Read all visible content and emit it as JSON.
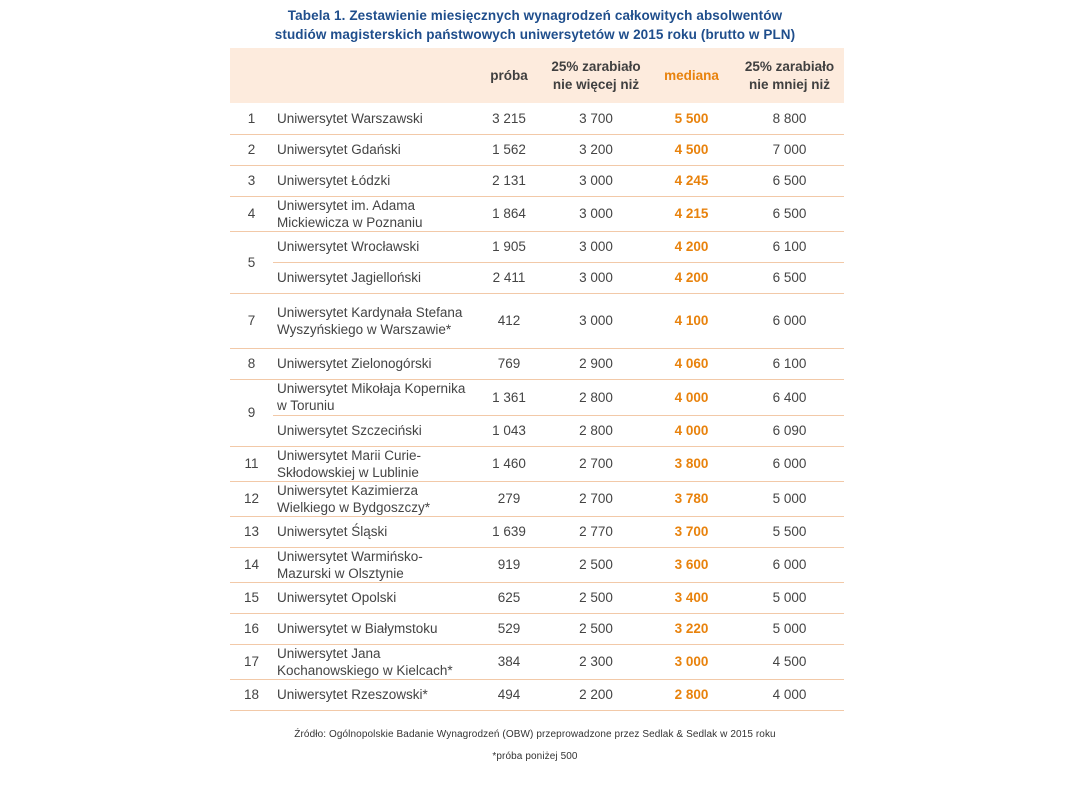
{
  "title": {
    "line1": "Tabela 1. Zestawienie miesięcznych wynagrodzeń całkowitych absolwentów",
    "line2": "studiów magisterskich państwowych uniwersytetów w 2015 roku (brutto w PLN)"
  },
  "headers": {
    "proba": "próba",
    "p25": "25% zarabiało nie więcej niż",
    "mediana": "mediana",
    "p75": "25% zarabiało nie mniej niż"
  },
  "rows": [
    {
      "rank": "1",
      "name": "Uniwersytet Warszawski",
      "proba": "3 215",
      "p25": "3 700",
      "mediana": "5 500",
      "p75": "8 800"
    },
    {
      "rank": "2",
      "name": "Uniwersytet Gdański",
      "proba": "1 562",
      "p25": "3 200",
      "mediana": "4 500",
      "p75": "7 000"
    },
    {
      "rank": "3",
      "name": "Uniwersytet Łódzki",
      "proba": "2 131",
      "p25": "3 000",
      "mediana": "4 245",
      "p75": "6 500"
    },
    {
      "rank": "4",
      "name": "Uniwersytet im. Adama Mickiewicza w Poznaniu",
      "proba": "1 864",
      "p25": "3 000",
      "mediana": "4 215",
      "p75": "6 500"
    },
    {
      "rank": "5",
      "name": "Uniwersytet Wrocławski",
      "proba": "1 905",
      "p25": "3 000",
      "mediana": "4 200",
      "p75": "6 100"
    },
    {
      "rank": "",
      "name": "Uniwersytet Jagielloński",
      "proba": "2 411",
      "p25": "3 000",
      "mediana": "4 200",
      "p75": "6 500"
    },
    {
      "rank": "7",
      "name": "Uniwersytet Kardynała Stefana Wyszyńskiego w Warszawie*",
      "proba": "412",
      "p25": "3 000",
      "mediana": "4 100",
      "p75": "6 000"
    },
    {
      "rank": "8",
      "name": "Uniwersytet Zielonogórski",
      "proba": "769",
      "p25": "2 900",
      "mediana": "4 060",
      "p75": "6 100"
    },
    {
      "rank": "9",
      "name": "Uniwersytet Mikołaja Kopernika w Toruniu",
      "proba": "1 361",
      "p25": "2 800",
      "mediana": "4 000",
      "p75": "6 400"
    },
    {
      "rank": "",
      "name": "Uniwersytet Szczeciński",
      "proba": "1 043",
      "p25": "2 800",
      "mediana": "4 000",
      "p75": "6 090"
    },
    {
      "rank": "11",
      "name": "Uniwersytet Marii Curie-Skłodowskiej w Lublinie",
      "proba": "1 460",
      "p25": "2 700",
      "mediana": "3 800",
      "p75": "6 000"
    },
    {
      "rank": "12",
      "name": "Uniwersytet Kazimierza Wielkiego w Bydgoszczy*",
      "proba": "279",
      "p25": "2 700",
      "mediana": "3 780",
      "p75": "5 000"
    },
    {
      "rank": "13",
      "name": "Uniwersytet Śląski",
      "proba": "1 639",
      "p25": "2 770",
      "mediana": "3 700",
      "p75": "5 500"
    },
    {
      "rank": "14",
      "name": "Uniwersytet Warmińsko-Mazurski w Olsztynie",
      "proba": "919",
      "p25": "2 500",
      "mediana": "3 600",
      "p75": "6 000"
    },
    {
      "rank": "15",
      "name": "Uniwersytet Opolski",
      "proba": "625",
      "p25": "2 500",
      "mediana": "3 400",
      "p75": "5 000"
    },
    {
      "rank": "16",
      "name": "Uniwersytet w Białymstoku",
      "proba": "529",
      "p25": "2 500",
      "mediana": "3 220",
      "p75": "5 000"
    },
    {
      "rank": "17",
      "name": "Uniwersytet Jana Kochanowskiego w Kielcach*",
      "proba": "384",
      "p25": "2 300",
      "mediana": "3 000",
      "p75": "4 500"
    },
    {
      "rank": "18",
      "name": "Uniwersytet Rzeszowski*",
      "proba": "494",
      "p25": "2 200",
      "mediana": "2 800",
      "p75": "4 000"
    }
  ],
  "footer": {
    "source": "Źródło: Ogólnopolskie Badanie Wynagrodzeń (OBW) przeprowadzone przez Sedlak & Sedlak w 2015 roku",
    "note": "*próba poniżej 500"
  },
  "colors": {
    "title": "#1f4e8c",
    "median": "#e8820c",
    "header_bg": "#fdebdd",
    "row_border": "#f2c9a8"
  }
}
